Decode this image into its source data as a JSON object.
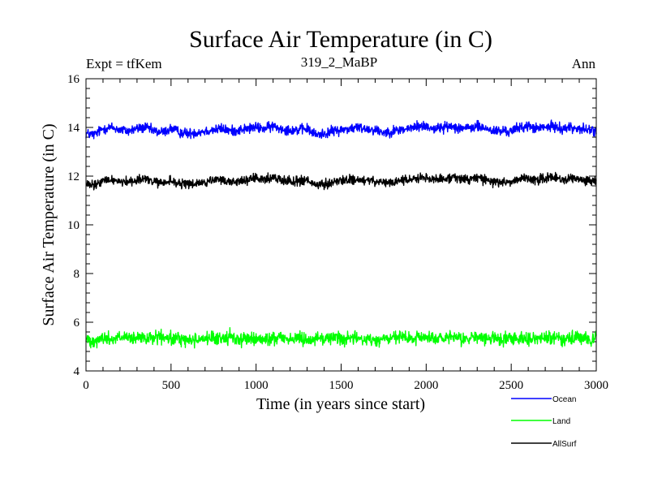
{
  "chart_data": {
    "type": "line",
    "title": "Surface Air Temperature (in C)",
    "subtitle_left": "Expt = tfKem",
    "subtitle_center": "319_2_MaBP",
    "subtitle_right": "Ann",
    "xlabel": "Time (in years since start)",
    "ylabel": "Surface Air Temperature (in C)",
    "xlim": [
      0,
      3000
    ],
    "ylim": [
      4,
      16
    ],
    "x_ticks": [
      0,
      500,
      1000,
      1500,
      2000,
      2500,
      3000
    ],
    "y_ticks": [
      4,
      6,
      8,
      10,
      12,
      14,
      16
    ],
    "grid": false,
    "legend_position": "bottom-right, below plot",
    "x": [
      0,
      50,
      100,
      150,
      200,
      250,
      300,
      350,
      400,
      450,
      500,
      550,
      600,
      650,
      700,
      750,
      800,
      850,
      900,
      950,
      1000,
      1050,
      1100,
      1150,
      1200,
      1250,
      1300,
      1350,
      1400,
      1450,
      1500,
      1550,
      1600,
      1650,
      1700,
      1750,
      1800,
      1850,
      1900,
      1950,
      2000,
      2050,
      2100,
      2150,
      2200,
      2250,
      2300,
      2350,
      2400,
      2450,
      2500,
      2550,
      2600,
      2650,
      2700,
      2750,
      2800,
      2850,
      2900,
      2950,
      3000
    ],
    "series": [
      {
        "name": "Ocean",
        "color": "#0000ff",
        "values": [
          13.75,
          13.7,
          13.95,
          14.0,
          13.9,
          13.85,
          13.95,
          14.0,
          13.85,
          13.8,
          13.95,
          13.8,
          13.75,
          13.8,
          13.85,
          13.9,
          13.95,
          13.85,
          13.9,
          13.95,
          14.0,
          13.95,
          14.05,
          13.95,
          13.9,
          13.9,
          13.95,
          13.7,
          13.75,
          13.85,
          13.9,
          13.95,
          14.0,
          13.95,
          13.9,
          13.8,
          13.85,
          13.9,
          13.95,
          14.05,
          14.05,
          13.95,
          14.0,
          14.05,
          14.0,
          13.95,
          14.05,
          13.95,
          13.85,
          13.85,
          13.85,
          14.0,
          14.05,
          13.95,
          14.0,
          14.05,
          13.95,
          14.0,
          13.95,
          13.9,
          13.85
        ]
      },
      {
        "name": "Land",
        "color": "#00ff00",
        "values": [
          5.3,
          5.25,
          5.35,
          5.3,
          5.4,
          5.3,
          5.35,
          5.3,
          5.4,
          5.35,
          5.3,
          5.35,
          5.25,
          5.3,
          5.35,
          5.3,
          5.35,
          5.4,
          5.3,
          5.35,
          5.3,
          5.25,
          5.35,
          5.4,
          5.3,
          5.35,
          5.3,
          5.35,
          5.3,
          5.4,
          5.35,
          5.3,
          5.35,
          5.3,
          5.25,
          5.3,
          5.35,
          5.4,
          5.3,
          5.35,
          5.4,
          5.35,
          5.3,
          5.35,
          5.3,
          5.35,
          5.4,
          5.3,
          5.35,
          5.3,
          5.35,
          5.4,
          5.35,
          5.3,
          5.35,
          5.4,
          5.35,
          5.3,
          5.35,
          5.3,
          5.4
        ]
      },
      {
        "name": "AllSurf",
        "color": "#000000",
        "values": [
          11.65,
          11.6,
          11.8,
          11.85,
          11.8,
          11.75,
          11.85,
          11.9,
          11.75,
          11.7,
          11.8,
          11.7,
          11.65,
          11.7,
          11.75,
          11.8,
          11.85,
          11.75,
          11.8,
          11.85,
          11.9,
          11.85,
          11.95,
          11.85,
          11.8,
          11.8,
          11.85,
          11.6,
          11.65,
          11.75,
          11.8,
          11.85,
          11.85,
          11.8,
          11.8,
          11.7,
          11.75,
          11.8,
          11.85,
          11.95,
          11.95,
          11.85,
          11.9,
          11.95,
          11.9,
          11.85,
          11.95,
          11.85,
          11.75,
          11.75,
          11.75,
          11.9,
          11.95,
          11.85,
          11.9,
          11.95,
          11.85,
          11.9,
          11.85,
          11.8,
          11.8
        ]
      }
    ]
  }
}
